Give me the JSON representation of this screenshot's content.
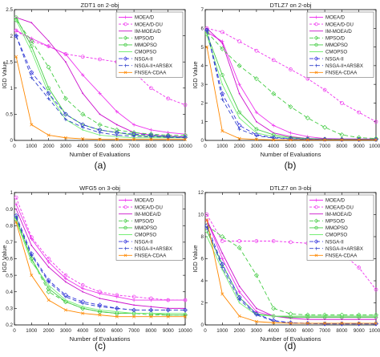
{
  "legend_names": [
    "MOEA/D",
    "MOEA/D-DU",
    "IM-MOEA/D",
    "MPSO/D",
    "MMOPSO",
    "CMOPSO",
    "NSGA-II",
    "NSGA-II+ARSBX",
    "FNSEA-CDAA"
  ],
  "series_styles": [
    {
      "color": "#ee33ee",
      "dash": "",
      "marker": "+"
    },
    {
      "color": "#ee33ee",
      "dash": "3,2",
      "marker": "o"
    },
    {
      "color": "#cc11cc",
      "dash": "",
      "marker": ""
    },
    {
      "color": "#44cc44",
      "dash": "5,3",
      "marker": "d"
    },
    {
      "color": "#44cc44",
      "dash": "",
      "marker": "o"
    },
    {
      "color": "#77ee77",
      "dash": "",
      "marker": ""
    },
    {
      "color": "#3333dd",
      "dash": "5,3",
      "marker": "d"
    },
    {
      "color": "#3344cc",
      "dash": "5,3",
      "marker": "+"
    },
    {
      "color": "#ff8800",
      "dash": "",
      "marker": "x"
    }
  ],
  "chart_data": [
    {
      "type": "line",
      "title": "ZDT1 on 2-obj",
      "panel_label": "(a)",
      "xlabel": "Number of Evaluations",
      "ylabel": "IGD Value",
      "xlim": [
        0,
        10000
      ],
      "ylim": [
        0,
        2.5
      ],
      "xticks": [
        0,
        1000,
        2000,
        3000,
        4000,
        5000,
        6000,
        7000,
        8000,
        9000,
        10000
      ],
      "yticks": [
        0,
        0.5,
        1,
        1.5,
        2,
        2.5
      ],
      "x": [
        100,
        1000,
        2000,
        3000,
        4000,
        5000,
        6000,
        7000,
        8000,
        9000,
        10000
      ],
      "series": [
        {
          "name": "MOEA/D",
          "values": [
            2.1,
            1.95,
            1.8,
            1.65,
            1.25,
            0.9,
            0.55,
            0.3,
            0.2,
            0.15,
            0.12
          ]
        },
        {
          "name": "MOEA/D-DU",
          "values": [
            2.1,
            1.9,
            1.8,
            1.65,
            1.6,
            1.55,
            1.5,
            1.3,
            1.0,
            0.8,
            0.68
          ]
        },
        {
          "name": "IM-MOEA/D",
          "values": [
            2.35,
            2.25,
            1.9,
            1.5,
            0.9,
            0.5,
            0.3,
            0.15,
            0.1,
            0.08,
            0.07
          ]
        },
        {
          "name": "MPSO/D",
          "values": [
            2.3,
            1.9,
            1.4,
            0.8,
            0.5,
            0.3,
            0.2,
            0.15,
            0.12,
            0.1,
            0.1
          ]
        },
        {
          "name": "MMOPSO",
          "values": [
            2.35,
            1.8,
            1.0,
            0.5,
            0.3,
            0.2,
            0.15,
            0.1,
            0.08,
            0.07,
            0.06
          ]
        },
        {
          "name": "CMOPSO",
          "values": [
            2.3,
            1.7,
            0.9,
            0.4,
            0.2,
            0.1,
            0.07,
            0.05,
            0.05,
            0.05,
            0.05
          ]
        },
        {
          "name": "NSGA-II",
          "values": [
            2.0,
            1.3,
            0.9,
            0.5,
            0.3,
            0.2,
            0.15,
            0.12,
            0.1,
            0.08,
            0.06
          ]
        },
        {
          "name": "NSGA-II+ARSBX",
          "values": [
            2.0,
            1.2,
            0.8,
            0.4,
            0.25,
            0.15,
            0.1,
            0.08,
            0.07,
            0.06,
            0.05
          ]
        },
        {
          "name": "FNSEA-CDAA",
          "values": [
            1.6,
            0.3,
            0.1,
            0.05,
            0.03,
            0.02,
            0.02,
            0.02,
            0.02,
            0.02,
            0.02
          ]
        }
      ]
    },
    {
      "type": "line",
      "title": "DTLZ7 on 2-obj",
      "panel_label": "(b)",
      "xlabel": "Number of Evaluations",
      "ylabel": "IGD Value",
      "xlim": [
        0,
        10000
      ],
      "ylim": [
        0,
        7
      ],
      "xticks": [
        0,
        1000,
        2000,
        3000,
        4000,
        5000,
        6000,
        7000,
        8000,
        9000,
        10000
      ],
      "yticks": [
        0,
        1,
        2,
        3,
        4,
        5,
        6,
        7
      ],
      "x": [
        100,
        1000,
        2000,
        3000,
        4000,
        5000,
        6000,
        7000,
        8000,
        9000,
        10000
      ],
      "series": [
        {
          "name": "MOEA/D",
          "values": [
            5.8,
            5.3,
            3.0,
            1.5,
            0.8,
            0.4,
            0.2,
            0.1,
            0.08,
            0.07,
            0.07
          ]
        },
        {
          "name": "MOEA/D-DU",
          "values": [
            6.0,
            5.8,
            5.3,
            4.8,
            4.3,
            3.8,
            3.3,
            2.7,
            2.0,
            1.5,
            1.0
          ]
        },
        {
          "name": "IM-MOEA/D",
          "values": [
            6.0,
            5.2,
            2.5,
            1.0,
            0.4,
            0.2,
            0.1,
            0.08,
            0.07,
            0.07,
            0.07
          ]
        },
        {
          "name": "MPSO/D",
          "values": [
            5.8,
            4.9,
            4.0,
            3.3,
            2.5,
            1.8,
            1.2,
            0.7,
            0.3,
            0.15,
            0.1
          ]
        },
        {
          "name": "MMOPSO",
          "values": [
            5.7,
            3.5,
            1.5,
            0.6,
            0.3,
            0.15,
            0.1,
            0.07,
            0.06,
            0.05,
            0.05
          ]
        },
        {
          "name": "CMOPSO",
          "values": [
            5.6,
            3.0,
            1.2,
            0.4,
            0.2,
            0.1,
            0.07,
            0.06,
            0.05,
            0.05,
            0.05
          ]
        },
        {
          "name": "NSGA-II",
          "values": [
            5.9,
            2.5,
            0.8,
            0.3,
            0.15,
            0.1,
            0.07,
            0.06,
            0.05,
            0.05,
            0.05
          ]
        },
        {
          "name": "NSGA-II+ARSBX",
          "values": [
            5.9,
            2.2,
            0.6,
            0.25,
            0.12,
            0.08,
            0.06,
            0.05,
            0.05,
            0.05,
            0.05
          ]
        },
        {
          "name": "FNSEA-CDAA",
          "values": [
            5.0,
            0.5,
            0.1,
            0.05,
            0.03,
            0.03,
            0.03,
            0.03,
            0.03,
            0.03,
            0.03
          ]
        }
      ]
    },
    {
      "type": "line",
      "title": "WFG5 on 3-obj",
      "panel_label": "(c)",
      "xlabel": "Number of Evaluations",
      "ylabel": "IGD Value",
      "xlim": [
        0,
        10000
      ],
      "ylim": [
        0.2,
        1
      ],
      "xticks": [
        0,
        1000,
        2000,
        3000,
        4000,
        5000,
        6000,
        7000,
        8000,
        9000,
        10000
      ],
      "yticks": [
        0.2,
        0.3,
        0.4,
        0.5,
        0.6,
        0.7,
        0.8,
        0.9,
        1
      ],
      "x": [
        100,
        1000,
        2000,
        3000,
        4000,
        5000,
        6000,
        7000,
        8000,
        9000,
        10000
      ],
      "series": [
        {
          "name": "MOEA/D",
          "values": [
            0.93,
            0.72,
            0.58,
            0.48,
            0.42,
            0.39,
            0.37,
            0.35,
            0.35,
            0.35,
            0.35
          ]
        },
        {
          "name": "MOEA/D-DU",
          "values": [
            0.97,
            0.73,
            0.6,
            0.5,
            0.44,
            0.4,
            0.38,
            0.37,
            0.36,
            0.35,
            0.35
          ]
        },
        {
          "name": "IM-MOEA/D",
          "values": [
            0.9,
            0.68,
            0.55,
            0.46,
            0.4,
            0.36,
            0.34,
            0.32,
            0.31,
            0.3,
            0.3
          ]
        },
        {
          "name": "MPSO/D",
          "values": [
            0.85,
            0.6,
            0.4,
            0.34,
            0.3,
            0.28,
            0.27,
            0.27,
            0.26,
            0.26,
            0.26
          ]
        },
        {
          "name": "MMOPSO",
          "values": [
            0.84,
            0.6,
            0.42,
            0.34,
            0.3,
            0.28,
            0.27,
            0.27,
            0.27,
            0.26,
            0.26
          ]
        },
        {
          "name": "CMOPSO",
          "values": [
            0.83,
            0.58,
            0.44,
            0.35,
            0.31,
            0.29,
            0.28,
            0.27,
            0.27,
            0.27,
            0.27
          ]
        },
        {
          "name": "NSGA-II",
          "values": [
            0.86,
            0.63,
            0.47,
            0.38,
            0.34,
            0.32,
            0.3,
            0.29,
            0.29,
            0.29,
            0.29
          ]
        },
        {
          "name": "NSGA-II+ARSBX",
          "values": [
            0.85,
            0.62,
            0.46,
            0.37,
            0.33,
            0.31,
            0.3,
            0.29,
            0.29,
            0.29,
            0.29
          ]
        },
        {
          "name": "FNSEA-CDAA",
          "values": [
            0.82,
            0.5,
            0.35,
            0.29,
            0.27,
            0.26,
            0.25,
            0.25,
            0.25,
            0.25,
            0.25
          ]
        }
      ]
    },
    {
      "type": "line",
      "title": "DTLZ7 on 3-obj",
      "panel_label": "(d)",
      "xlabel": "Number of Evaluations",
      "ylabel": "IGD Value",
      "xlim": [
        0,
        10000
      ],
      "ylim": [
        0,
        12
      ],
      "xticks": [
        0,
        1000,
        2000,
        3000,
        4000,
        5000,
        6000,
        7000,
        8000,
        9000,
        10000
      ],
      "yticks": [
        0,
        2,
        4,
        6,
        8,
        10,
        12
      ],
      "x": [
        100,
        1000,
        2000,
        3000,
        4000,
        5000,
        6000,
        7000,
        8000,
        9000,
        10000
      ],
      "series": [
        {
          "name": "MOEA/D",
          "values": [
            9.5,
            6.0,
            3.0,
            1.2,
            0.8,
            0.7,
            0.7,
            0.7,
            0.7,
            0.7,
            0.7
          ]
        },
        {
          "name": "MOEA/D-DU",
          "values": [
            10.0,
            7.6,
            7.6,
            7.6,
            7.6,
            7.5,
            7.4,
            7.0,
            6.5,
            5.2,
            3.2
          ]
        },
        {
          "name": "IM-MOEA/D",
          "values": [
            9.5,
            6.5,
            3.5,
            1.5,
            0.8,
            0.6,
            0.5,
            0.5,
            0.5,
            0.5,
            0.5
          ]
        },
        {
          "name": "MPSO/D",
          "values": [
            9.0,
            8.0,
            7.0,
            4.5,
            1.5,
            1.0,
            0.9,
            0.9,
            0.9,
            0.9,
            0.9
          ]
        },
        {
          "name": "MMOPSO",
          "values": [
            8.5,
            5.5,
            2.5,
            1.0,
            0.8,
            0.7,
            0.7,
            0.7,
            0.7,
            0.7,
            0.7
          ]
        },
        {
          "name": "CMOPSO",
          "values": [
            8.0,
            5.0,
            2.0,
            0.9,
            0.8,
            0.8,
            0.8,
            0.8,
            0.8,
            0.8,
            0.8
          ]
        },
        {
          "name": "NSGA-II",
          "values": [
            9.0,
            5.5,
            2.5,
            1.0,
            0.4,
            0.2,
            0.15,
            0.1,
            0.1,
            0.1,
            0.1
          ]
        },
        {
          "name": "NSGA-II+ARSBX",
          "values": [
            8.8,
            5.2,
            2.3,
            0.9,
            0.35,
            0.18,
            0.12,
            0.1,
            0.1,
            0.1,
            0.1
          ]
        },
        {
          "name": "FNSEA-CDAA",
          "values": [
            9.5,
            2.8,
            0.8,
            0.3,
            0.2,
            0.15,
            0.15,
            0.15,
            0.15,
            0.15,
            0.15
          ]
        }
      ]
    }
  ]
}
